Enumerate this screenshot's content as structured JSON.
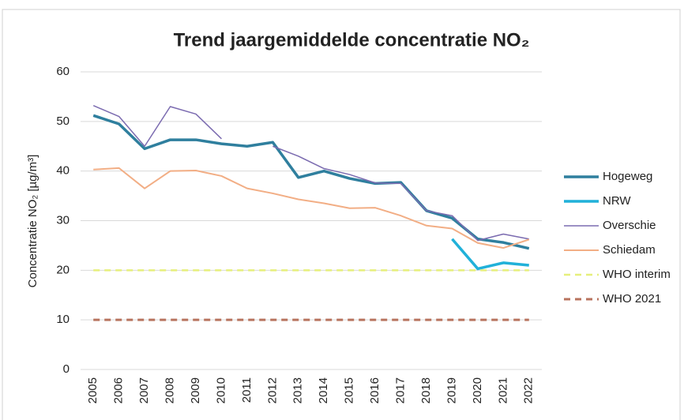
{
  "chart_data": {
    "type": "line",
    "title": "Trend jaargemiddelde concentratie NO₂",
    "y_label": "Concentratie NO₂ [µg/m³]",
    "categories": [
      "2005",
      "2006",
      "2007",
      "2008",
      "2009",
      "2010",
      "2011",
      "2012",
      "2013",
      "2014",
      "2015",
      "2016",
      "2017",
      "2018",
      "2019",
      "2020",
      "2021",
      "2022"
    ],
    "series": [
      {
        "name": "Hogeweg",
        "color": "#2f7f9e",
        "line_width": 3.5,
        "dashed": false,
        "values": [
          51.2,
          49.5,
          44.5,
          46.3,
          46.3,
          45.5,
          45,
          45.8,
          38.7,
          40,
          38.5,
          37.5,
          37.7,
          32,
          30.5,
          26.3,
          25.6,
          24.4
        ]
      },
      {
        "name": "NRW",
        "color": "#21b1d9",
        "line_width": 3.5,
        "dashed": false,
        "values": [
          null,
          null,
          null,
          null,
          null,
          null,
          null,
          null,
          null,
          null,
          null,
          null,
          null,
          null,
          26.3,
          20.3,
          21.5,
          21
        ]
      },
      {
        "name": "Overschie",
        "color": "#7b6bb0",
        "line_width": 1.5,
        "dashed": false,
        "values": [
          53.2,
          51,
          45,
          53,
          51.5,
          46.5,
          null,
          45,
          43,
          40.5,
          39.3,
          37.6,
          37.5,
          32,
          31,
          26,
          27.3,
          26.3
        ]
      },
      {
        "name": "Schiedam",
        "color": "#f2ae85",
        "line_width": 2,
        "dashed": false,
        "values": [
          40.3,
          40.6,
          36.5,
          40,
          40.1,
          39,
          36.5,
          35.5,
          34.3,
          33.5,
          32.5,
          32.6,
          31,
          29,
          28.4,
          25.5,
          24.5,
          26.2
        ]
      },
      {
        "name": "WHO interim",
        "color": "#e6ef7c",
        "line_width": 2.5,
        "dashed": true,
        "values": [
          20,
          20,
          20,
          20,
          20,
          20,
          20,
          20,
          20,
          20,
          20,
          20,
          20,
          20,
          20,
          20,
          20,
          20
        ]
      },
      {
        "name": "WHO 2021",
        "color": "#b8735e",
        "line_width": 3,
        "dashed": true,
        "values": [
          10,
          10,
          10,
          10,
          10,
          10,
          10,
          10,
          10,
          10,
          10,
          10,
          10,
          10,
          10,
          10,
          10,
          10
        ]
      }
    ],
    "ylim": [
      0,
      60
    ],
    "yticks": [
      0,
      10,
      20,
      30,
      40,
      50,
      60
    ],
    "grid": true,
    "legend": "right"
  }
}
